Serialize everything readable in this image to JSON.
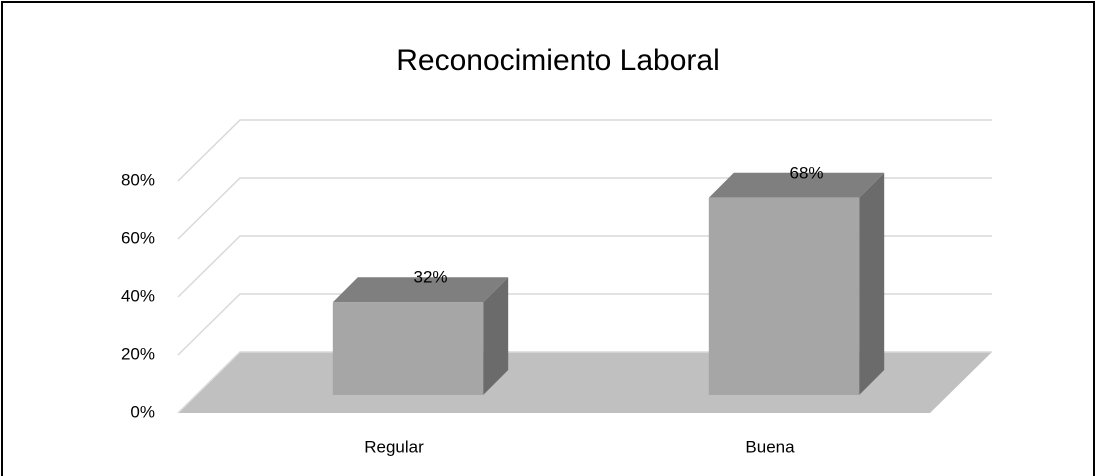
{
  "chart_data": {
    "type": "bar3d",
    "title": "Reconocimiento Laboral",
    "categories": [
      "Regular",
      "Buena"
    ],
    "values": [
      32,
      68
    ],
    "value_labels": [
      "32%",
      "68%"
    ],
    "color": "#a6a6a6",
    "ylim": [
      0,
      80
    ],
    "yticks": [
      {
        "value": 0,
        "label": "0%"
      },
      {
        "value": 20,
        "label": "20%"
      },
      {
        "value": 40,
        "label": "40%"
      },
      {
        "value": 60,
        "label": "60%"
      },
      {
        "value": 80,
        "label": "80%"
      }
    ],
    "grid": true
  }
}
